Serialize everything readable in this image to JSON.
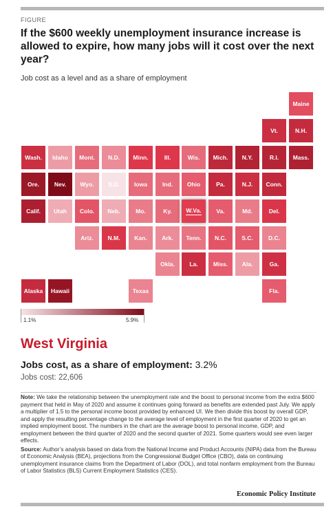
{
  "figure_label": "FIGURE",
  "title": "If the $600 weekly unemployment insurance increase is allowed to expire, how many jobs will it cost over the next year?",
  "subtitle": "Job cost as a level and as a share of employment",
  "chart_data": {
    "type": "heatmap",
    "title": "If the $600 weekly unemployment insurance increase is allowed to expire, how many jobs will it cost over the next year?",
    "subtitle": "Job cost as a level and as a share of employment",
    "value_unit": "percent of employment",
    "scale": {
      "min": 1.1,
      "max": 5.9,
      "min_color": "#f7e3e6",
      "max_color": "#7f0b19"
    },
    "states": [
      {
        "label": "Maine",
        "col": 10,
        "row": 0,
        "value": 3.0
      },
      {
        "label": "Vt.",
        "col": 9,
        "row": 1,
        "value": 3.8
      },
      {
        "label": "N.H.",
        "col": 10,
        "row": 1,
        "value": 4.0
      },
      {
        "label": "Wash.",
        "col": 0,
        "row": 2,
        "value": 3.8
      },
      {
        "label": "Idaho",
        "col": 1,
        "row": 2,
        "value": 2.0
      },
      {
        "label": "Mont.",
        "col": 2,
        "row": 2,
        "value": 2.6
      },
      {
        "label": "N.D.",
        "col": 3,
        "row": 2,
        "value": 2.2
      },
      {
        "label": "Minn.",
        "col": 4,
        "row": 2,
        "value": 3.3
      },
      {
        "label": "Ill.",
        "col": 5,
        "row": 2,
        "value": 3.3
      },
      {
        "label": "Wis.",
        "col": 6,
        "row": 2,
        "value": 2.6
      },
      {
        "label": "Mich.",
        "col": 7,
        "row": 2,
        "value": 4.2
      },
      {
        "label": "N.Y.",
        "col": 8,
        "row": 2,
        "value": 4.5
      },
      {
        "label": "R.I.",
        "col": 9,
        "row": 2,
        "value": 4.4
      },
      {
        "label": "Mass.",
        "col": 10,
        "row": 2,
        "value": 4.6
      },
      {
        "label": "Ore.",
        "col": 0,
        "row": 3,
        "value": 5.1
      },
      {
        "label": "Nev.",
        "col": 1,
        "row": 3,
        "value": 5.9
      },
      {
        "label": "Wyo.",
        "col": 2,
        "row": 3,
        "value": 2.0
      },
      {
        "label": "S.D.",
        "col": 3,
        "row": 3,
        "value": 1.1
      },
      {
        "label": "Iowa",
        "col": 4,
        "row": 3,
        "value": 2.6
      },
      {
        "label": "Ind.",
        "col": 5,
        "row": 3,
        "value": 2.6
      },
      {
        "label": "Ohio",
        "col": 6,
        "row": 3,
        "value": 2.8
      },
      {
        "label": "Pa.",
        "col": 7,
        "row": 3,
        "value": 4.0
      },
      {
        "label": "N.J.",
        "col": 8,
        "row": 3,
        "value": 3.8
      },
      {
        "label": "Conn.",
        "col": 9,
        "row": 3,
        "value": 4.1
      },
      {
        "label": "Calif.",
        "col": 0,
        "row": 4,
        "value": 4.7
      },
      {
        "label": "Utah",
        "col": 1,
        "row": 4,
        "value": 1.8
      },
      {
        "label": "Colo.",
        "col": 2,
        "row": 4,
        "value": 2.9
      },
      {
        "label": "Neb.",
        "col": 3,
        "row": 4,
        "value": 1.8
      },
      {
        "label": "Mo.",
        "col": 4,
        "row": 4,
        "value": 2.4
      },
      {
        "label": "Ky.",
        "col": 5,
        "row": 4,
        "value": 2.6
      },
      {
        "label": "W.Va.",
        "col": 6,
        "row": 4,
        "value": 3.2
      },
      {
        "label": "Va.",
        "col": 7,
        "row": 4,
        "value": 2.8
      },
      {
        "label": "Md.",
        "col": 8,
        "row": 4,
        "value": 2.4
      },
      {
        "label": "Del.",
        "col": 9,
        "row": 4,
        "value": 3.4
      },
      {
        "label": "Ariz.",
        "col": 2,
        "row": 5,
        "value": 2.2
      },
      {
        "label": "N.M.",
        "col": 3,
        "row": 5,
        "value": 3.4
      },
      {
        "label": "Kan.",
        "col": 4,
        "row": 5,
        "value": 2.3
      },
      {
        "label": "Ark.",
        "col": 5,
        "row": 5,
        "value": 2.2
      },
      {
        "label": "Tenn.",
        "col": 6,
        "row": 5,
        "value": 2.5
      },
      {
        "label": "N.C.",
        "col": 7,
        "row": 5,
        "value": 2.9
      },
      {
        "label": "S.C.",
        "col": 8,
        "row": 5,
        "value": 2.8
      },
      {
        "label": "D.C.",
        "col": 9,
        "row": 5,
        "value": 2.3
      },
      {
        "label": "Okla.",
        "col": 5,
        "row": 6,
        "value": 2.3
      },
      {
        "label": "La.",
        "col": 6,
        "row": 6,
        "value": 3.8
      },
      {
        "label": "Miss.",
        "col": 7,
        "row": 6,
        "value": 2.8
      },
      {
        "label": "Ala.",
        "col": 8,
        "row": 6,
        "value": 2.0
      },
      {
        "label": "Ga.",
        "col": 9,
        "row": 6,
        "value": 3.7
      },
      {
        "label": "Alaska",
        "col": 0,
        "row": 7,
        "value": 4.0
      },
      {
        "label": "Hawaii",
        "col": 1,
        "row": 7,
        "value": 5.3
      },
      {
        "label": "Texas",
        "col": 4,
        "row": 7,
        "value": 2.3
      },
      {
        "label": "Fla.",
        "col": 9,
        "row": 7,
        "value": 2.8
      }
    ],
    "selected": "W.Va."
  },
  "legend": {
    "min_label": "1.1%",
    "max_label": "5.9%"
  },
  "detail": {
    "state_name": "West Virginia",
    "share_label": "Jobs cost, as a share of employment:",
    "share_value": "3.2%",
    "cost_label": "Jobs cost:",
    "cost_value": "22,606"
  },
  "notes": {
    "note_label": "Note:",
    "note_text_1": " We take the relationship between the unemployment rate and the boost to personal income from the extra $600 payment that held in May of 2020 and assume it continues going forward as benefits are extended past July. We apply a multiplier of 1.5 to the personal income boost provided by enhanced UI. We then divide this boost by overall GDP, and apply the resulting percentage change to the average level of employment in the first quarter of 2020 to get an implied employment boost. The numbers in the chart are the ",
    "note_emphasis": "average",
    "note_text_2": " boost to personal income, GDP, and employment between the third quarter of 2020 and the second quarter of 2021. Some quarters would see even larger effects.",
    "source_label": "Source:",
    "source_text": " Author’s analysis based on data from the National Income and Product Accounts (NIPA) data from the Bureau of Economic Analysis (BEA), projections from the Congressional Budget Office (CBO), data on continuing unemployment insurance claims from the Department of Labor (DOL), and total nonfarm employment from the Bureau of Labor Statistics (BLS) Current Employment Statistics (CES)."
  },
  "brand": "Economic Policy Institute"
}
